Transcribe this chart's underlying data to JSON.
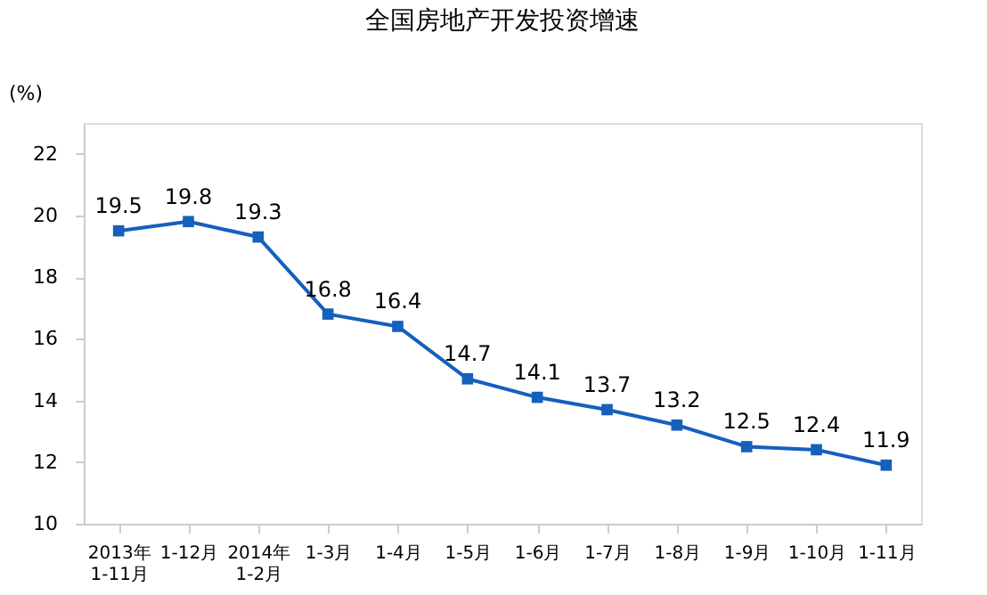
{
  "chart_data": {
    "type": "line",
    "title": "全国房地产开发投资增速",
    "ylabel": "(%)",
    "categories": [
      "2013年\n1-11月",
      "1-12月",
      "2014年\n1-2月",
      "1-3月",
      "1-4月",
      "1-5月",
      "1-6月",
      "1-7月",
      "1-8月",
      "1-9月",
      "1-10月",
      "1-11月"
    ],
    "series": [
      {
        "color": "#1560bd",
        "values": [
          19.5,
          19.8,
          19.3,
          16.8,
          16.4,
          14.7,
          14.1,
          13.7,
          13.2,
          12.5,
          12.4,
          11.9
        ]
      }
    ],
    "ylim": [
      10,
      23
    ],
    "yticks": [
      10,
      12,
      14,
      16,
      18,
      20,
      22
    ],
    "grid": false,
    "marker": "square",
    "line_style": "solid",
    "data_labels": true
  }
}
